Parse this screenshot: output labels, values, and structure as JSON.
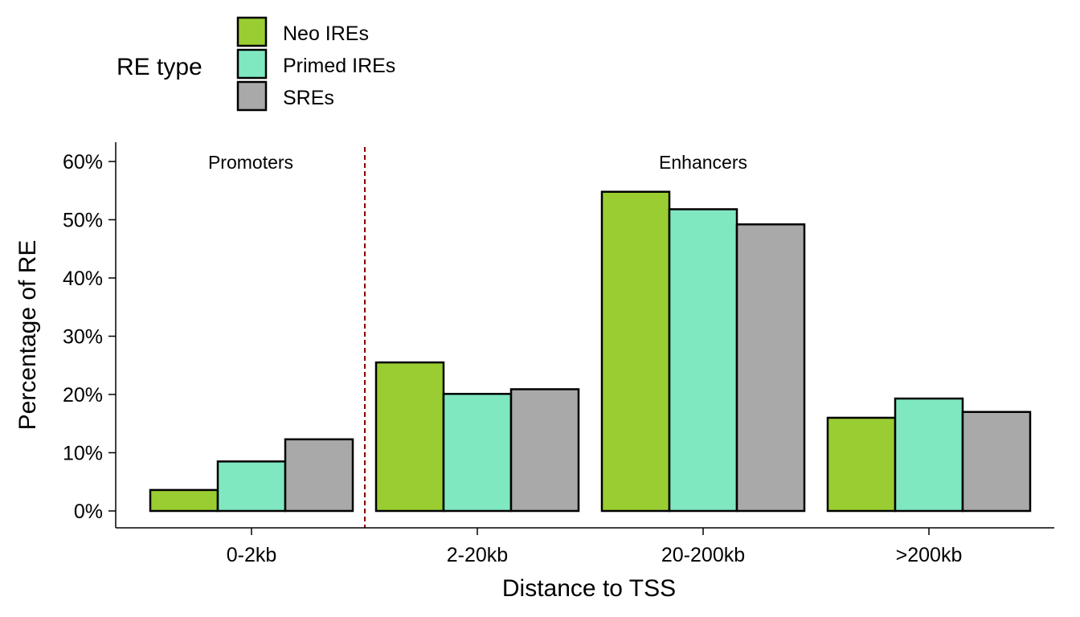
{
  "chart_data": {
    "type": "bar",
    "title": "",
    "xlabel": "Distance to TSS",
    "ylabel": "Percentage of RE",
    "categories": [
      "0-2kb",
      "2-20kb",
      "20-200kb",
      ">200kb"
    ],
    "ylim": [
      0,
      60
    ],
    "yticks": [
      "0%",
      "10%",
      "20%",
      "30%",
      "40%",
      "50%",
      "60%"
    ],
    "ytick_values": [
      0,
      10,
      20,
      30,
      40,
      50,
      60
    ],
    "series": [
      {
        "name": "Neo IREs",
        "color": "#9ACD32",
        "values": [
          3.6,
          25.5,
          54.8,
          16.0
        ]
      },
      {
        "name": "Primed IREs",
        "color": "#7FE8C0",
        "values": [
          8.5,
          20.1,
          51.8,
          19.3
        ]
      },
      {
        "name": "SREs",
        "color": "#A9A9A9",
        "values": [
          12.3,
          20.9,
          49.2,
          17.0
        ]
      }
    ],
    "legend": {
      "title": "RE type",
      "position": "top-left"
    },
    "annotations": [
      "Promoters",
      "Enhancers"
    ],
    "divider_color": "#8B0000",
    "grid": false
  }
}
